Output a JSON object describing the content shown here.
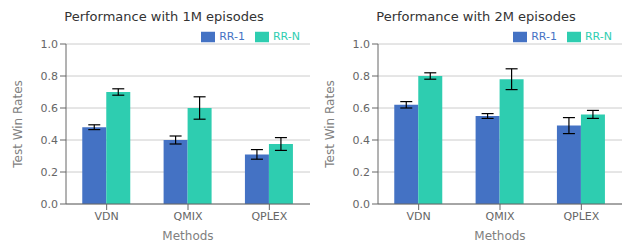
{
  "chart_data": [
    {
      "type": "bar",
      "title": "Performance with 1M episodes",
      "xlabel": "Methods",
      "ylabel": "Test Win Rates",
      "categories": [
        "VDN",
        "QMIX",
        "QPLEX"
      ],
      "series": [
        {
          "name": "RR-1",
          "color": "#4472C4",
          "values": [
            0.48,
            0.4,
            0.31
          ],
          "errors": [
            0.015,
            0.025,
            0.03
          ]
        },
        {
          "name": "RR-N",
          "color": "#2ECDB0",
          "values": [
            0.7,
            0.6,
            0.375
          ],
          "errors": [
            0.02,
            0.07,
            0.04
          ]
        }
      ],
      "ylim": [
        0.0,
        1.0
      ],
      "yticks": [
        {
          "value": 0,
          "label": "0.0"
        },
        0.2,
        0.4,
        0.6,
        0.8,
        {
          "value": 1,
          "label": "1.0"
        }
      ],
      "grid": true,
      "legend": "upper right"
    },
    {
      "type": "bar",
      "title": "Performance with 2M episodes",
      "xlabel": "Methods",
      "ylabel": "Test Win Rates",
      "categories": [
        "VDN",
        "QMIX",
        "QPLEX"
      ],
      "series": [
        {
          "name": "RR-1",
          "color": "#4472C4",
          "values": [
            0.62,
            0.55,
            0.49
          ],
          "errors": [
            0.02,
            0.015,
            0.05
          ]
        },
        {
          "name": "RR-N",
          "color": "#2ECDB0",
          "values": [
            0.8,
            0.78,
            0.56
          ],
          "errors": [
            0.02,
            0.065,
            0.025
          ]
        }
      ],
      "ylim": [
        0.0,
        1.0
      ],
      "yticks": [
        {
          "value": 0,
          "label": "0.0"
        },
        0.2,
        0.4,
        0.6,
        0.8,
        {
          "value": 1,
          "label": "1.0"
        }
      ],
      "grid": true,
      "legend": "upper right"
    }
  ]
}
